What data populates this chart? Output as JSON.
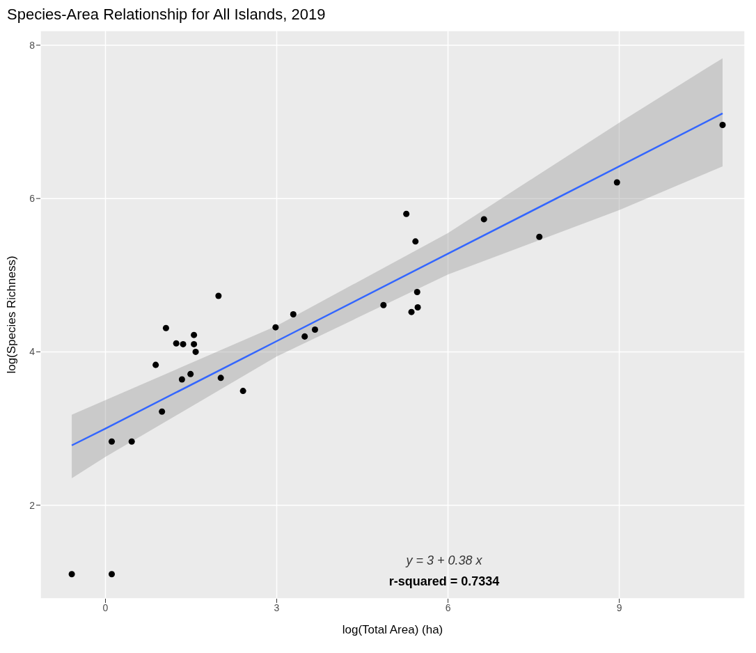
{
  "chart_data": {
    "type": "scatter",
    "title": "Species-Area Relationship for All Islands, 2019",
    "xlabel": "log(Total Area) (ha)",
    "ylabel": "log(Species Richness)",
    "annotations": [
      "y = 3 + 0.38 x",
      "r-squared = 0.7334"
    ],
    "xlim": [
      -1.14,
      11.2
    ],
    "xticks": [
      0,
      3,
      6,
      9
    ],
    "ylim": [
      0.78,
      8.19
    ],
    "yticks": [
      2,
      4,
      6,
      8
    ],
    "grid": true,
    "series": [
      {
        "marker": "circle",
        "color": "#000000",
        "x": [
          -0.59,
          0.11,
          0.11,
          0.46,
          0.88,
          0.99,
          1.06,
          1.24,
          1.36,
          1.34,
          1.49,
          1.55,
          1.55,
          1.58,
          1.98,
          2.02,
          2.41,
          2.98,
          3.29,
          3.49,
          3.67,
          4.87,
          5.27,
          5.43,
          5.36,
          5.46,
          5.47,
          6.63,
          7.6,
          8.96,
          10.81
        ],
        "values": [
          1.1,
          1.1,
          2.83,
          2.83,
          3.83,
          3.22,
          4.31,
          4.11,
          4.1,
          3.64,
          3.71,
          4.22,
          4.1,
          4.0,
          4.73,
          3.66,
          3.49,
          4.32,
          4.49,
          4.2,
          4.29,
          4.61,
          5.8,
          5.44,
          4.52,
          4.78,
          4.58,
          5.73,
          5.5,
          6.21,
          6.96
        ]
      },
      {
        "type": "line",
        "color": "#3366ff",
        "x": [
          -0.59,
          0,
          3,
          6,
          9,
          10.81
        ],
        "values": [
          2.78,
          3.0,
          4.14,
          5.28,
          6.42,
          7.11
        ],
        "lower": [
          2.35,
          2.63,
          3.94,
          5.01,
          5.85,
          6.42
        ],
        "upper": [
          3.18,
          3.37,
          4.34,
          5.55,
          6.99,
          7.83
        ]
      }
    ]
  }
}
